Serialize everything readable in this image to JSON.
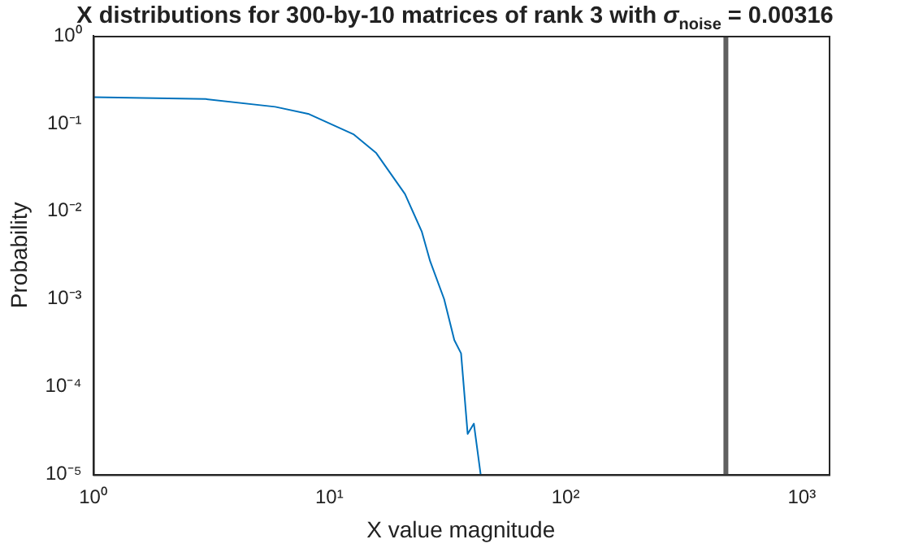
{
  "chart_data": {
    "type": "line",
    "title": "X distributions for 300-by-10  matrices of rank 3 with σ$_{noise}$ = 0.00316",
    "xlabel": "X value magnitude",
    "ylabel": "Probability",
    "log": "xy",
    "grid": false,
    "legend": false,
    "marker": "none",
    "line_style": "solid",
    "xlim": [
      1,
      1300
    ],
    "xticks": [
      {
        "value": 1,
        "label": "10⁰"
      },
      {
        "value": 10,
        "label": "10¹"
      },
      {
        "value": 100,
        "label": "10²"
      },
      {
        "value": 1000,
        "label": "10³"
      }
    ],
    "ylim": [
      1e-05,
      1
    ],
    "yticks": [
      {
        "value": 1e-05,
        "label": "10⁻⁵"
      },
      {
        "value": 0.0001,
        "label": "10⁻⁴"
      },
      {
        "value": 0.001,
        "label": "10⁻³"
      },
      {
        "value": 0.01,
        "label": "10⁻²"
      },
      {
        "value": 0.1,
        "label": "10⁻¹"
      },
      {
        "value": 1,
        "label": "10⁰"
      }
    ],
    "x": [
      1,
      3,
      5.9,
      8.2,
      12.7,
      15.8,
      20.9,
      24.6,
      26.7,
      30.6,
      33.8,
      36.1,
      38.5,
      40.9,
      43.7
    ],
    "series": [
      {
        "color": "#0072bd",
        "values": [
          0.2,
          0.19,
          0.155,
          0.128,
          0.075,
          0.046,
          0.0157,
          0.0059,
          0.0027,
          0.001,
          0.00034,
          0.00024,
          2.9e-05,
          3.8e-05,
          1e-05
        ]
      }
    ],
    "ref_lines": [
      {
        "axis": "x",
        "value": 477,
        "color": "#606060"
      }
    ]
  }
}
